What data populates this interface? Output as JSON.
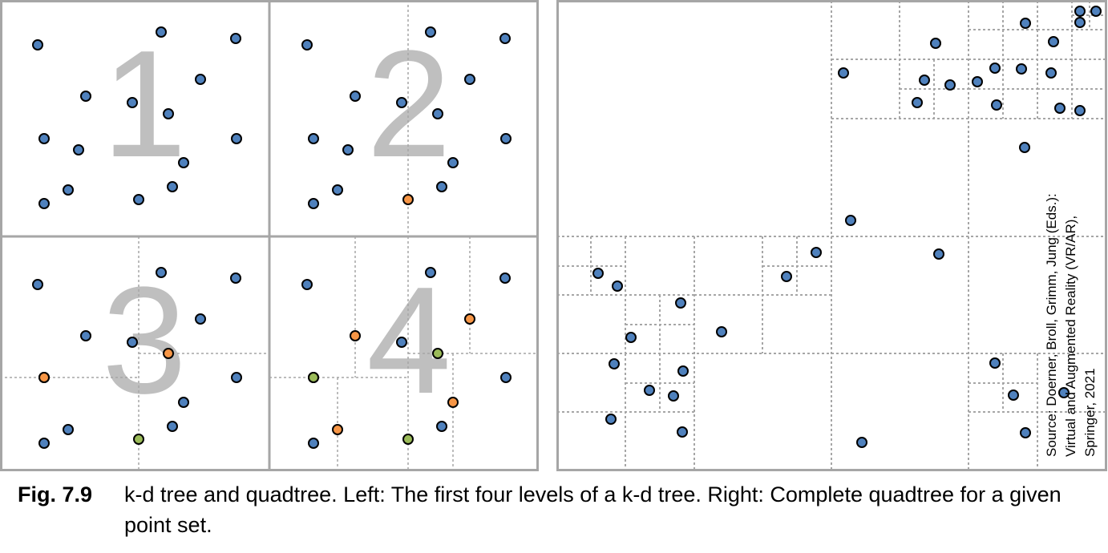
{
  "kd_tree": {
    "panel_numbers": [
      "1",
      "2",
      "3",
      "4"
    ],
    "colors": {
      "point": "#4f81bd",
      "level1_point": "#f79646",
      "level2_point": "#9bbb59",
      "split_line": "#a6a6a6",
      "panel_border": "#a6a6a6",
      "number": "#bfbfbf"
    }
  },
  "quadtree": {
    "colors": {
      "point": "#4f81bd",
      "grid_line": "#a6a6a6"
    }
  },
  "caption": {
    "label": "Fig. 7.9",
    "text": "k-d tree and quadtree. Left: The first four levels of a k-d tree. Right: Complete quadtree for a given point set."
  },
  "source_note": {
    "line1": "Source: Doerner, Broll, Grimm, Jung (Eds.):",
    "line2": "Virtual and Augmented Reality (VR/AR),",
    "line3": "Springer, 2021"
  }
}
